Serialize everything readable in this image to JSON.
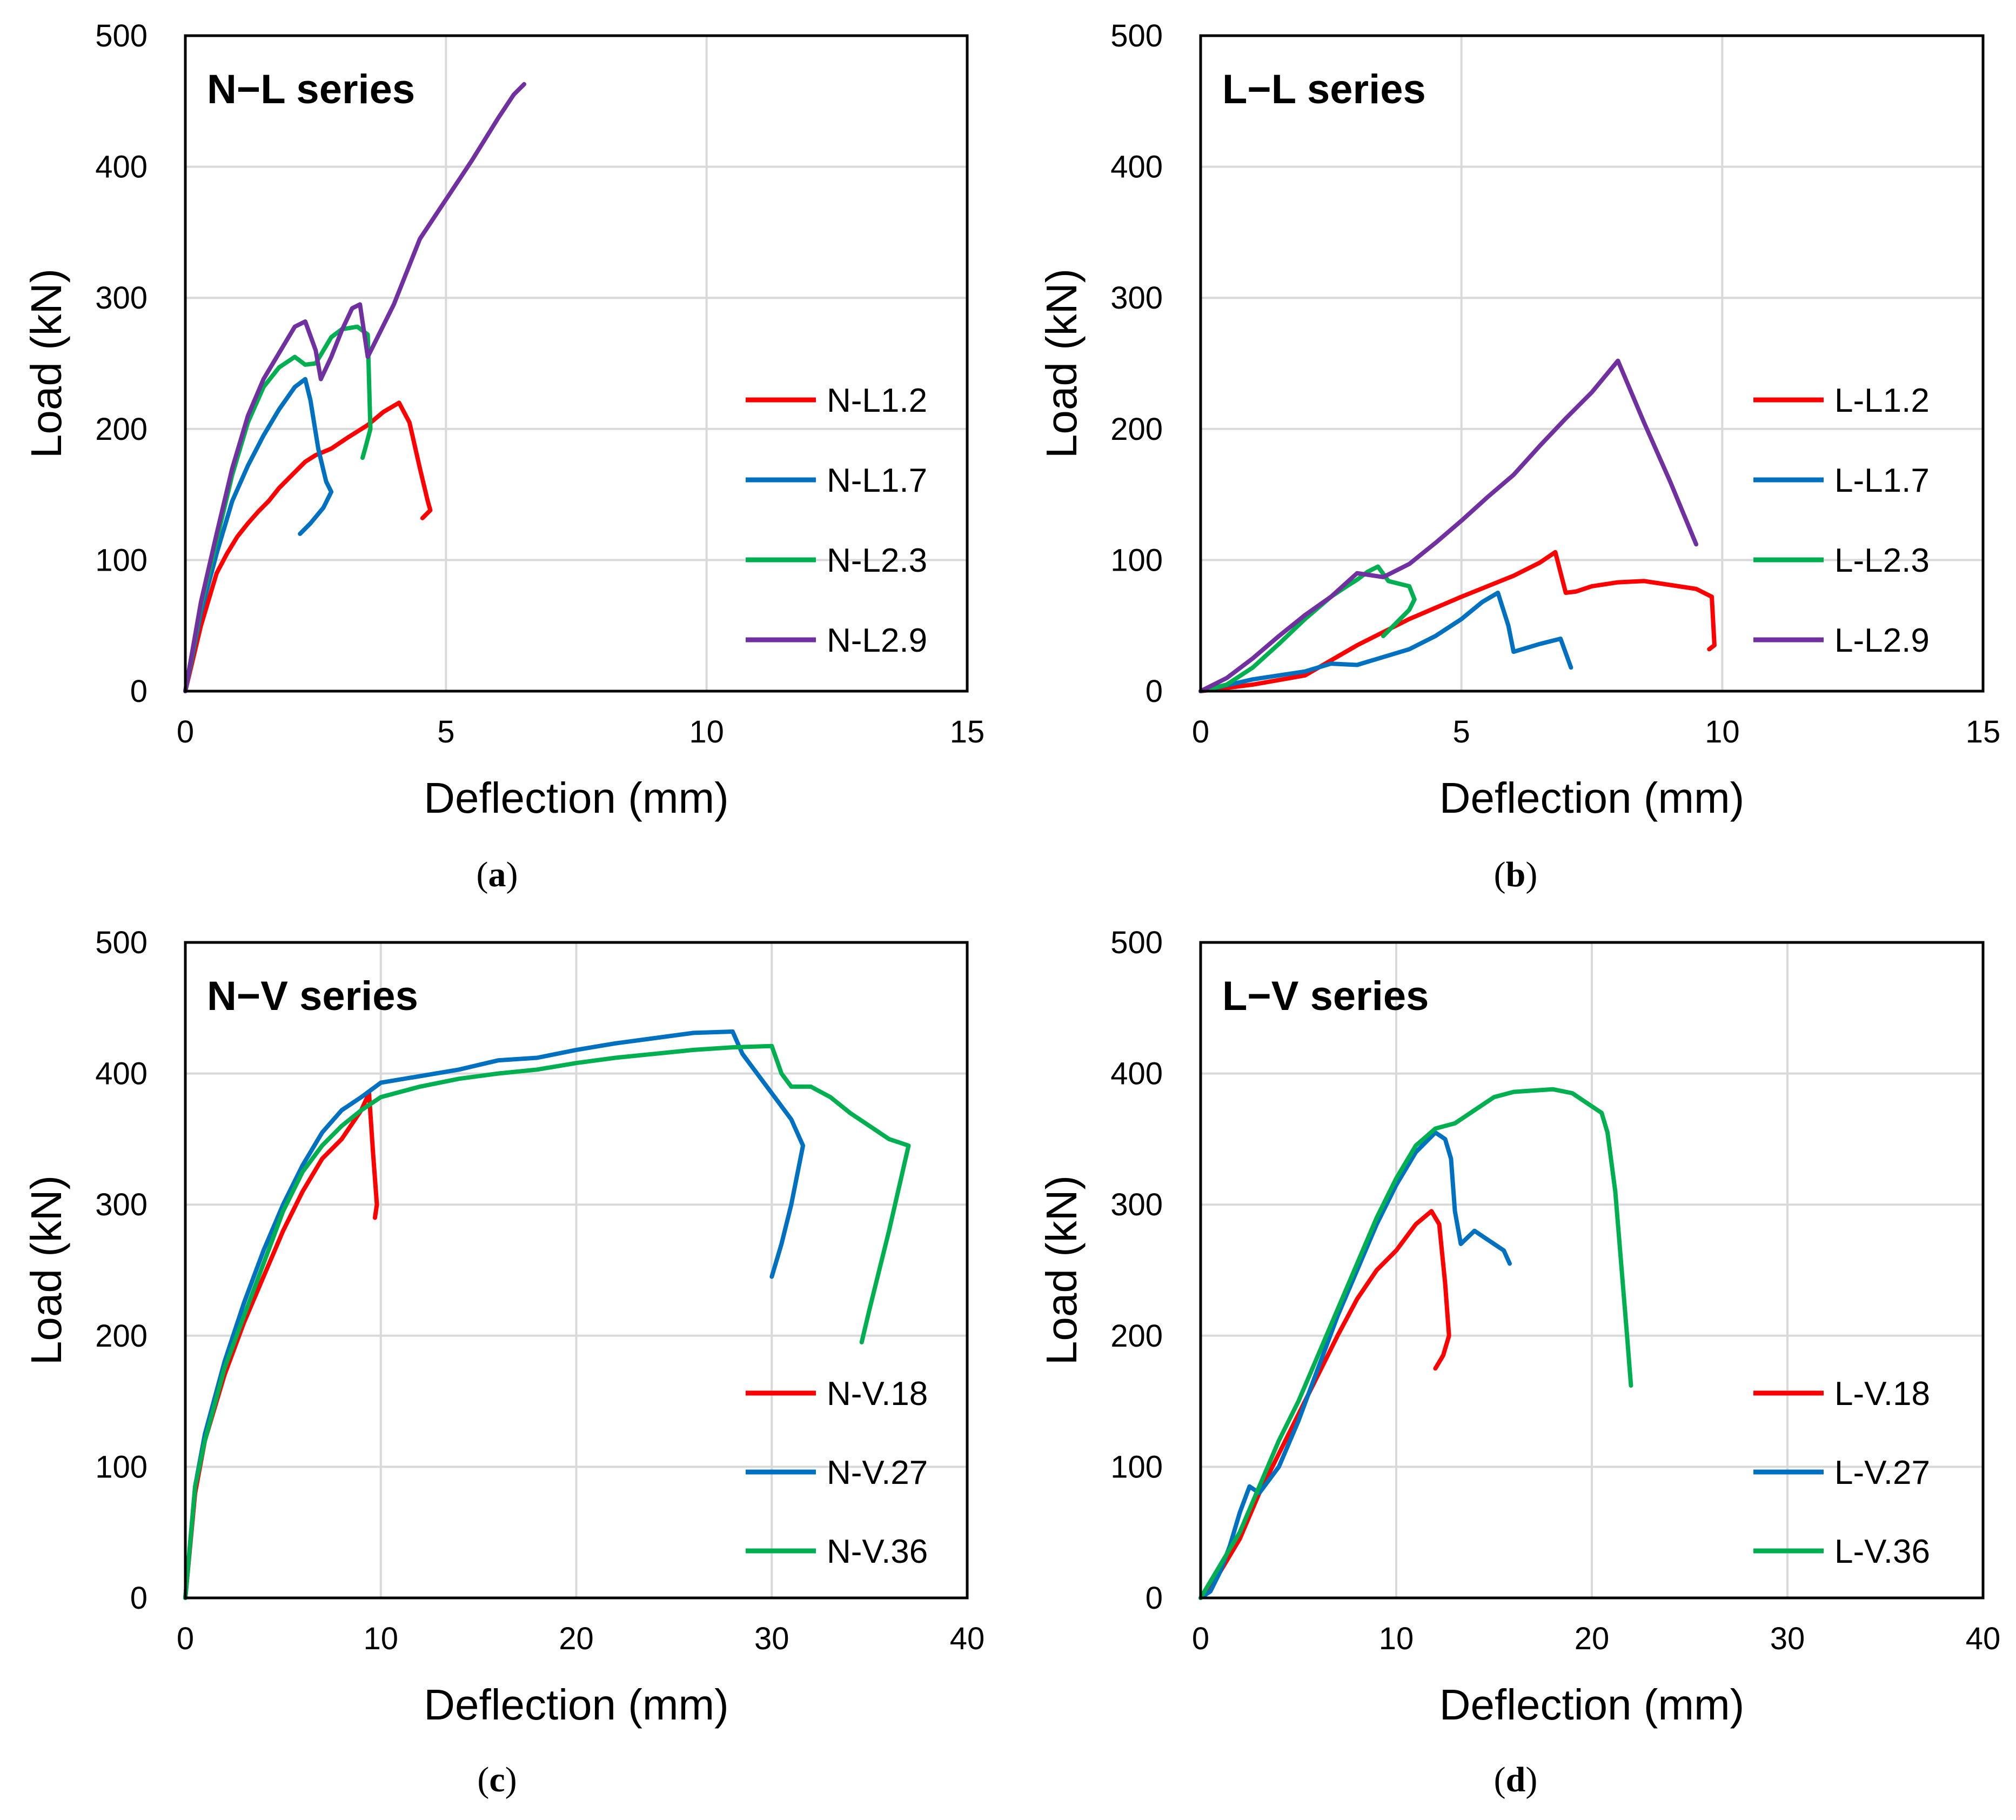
{
  "chart_data": [
    {
      "id": "a",
      "type": "line",
      "title": "N−L series",
      "caption": "a",
      "xlabel": "Deflection  (mm)",
      "ylabel": "Load (kN)",
      "xlim": [
        0,
        15
      ],
      "ylim": [
        0,
        500
      ],
      "xticks": [
        0,
        5,
        10,
        15
      ],
      "yticks": [
        0,
        100,
        200,
        300,
        400,
        500
      ],
      "grid": true,
      "legend_position": "right",
      "series": [
        {
          "name": "N-L1.2",
          "color": "#ff0000",
          "x": [
            0,
            0.3,
            0.6,
            0.8,
            1.0,
            1.2,
            1.4,
            1.6,
            1.8,
            2.0,
            2.3,
            2.5,
            2.8,
            3.1,
            3.5,
            3.8,
            4.1,
            4.3,
            4.5,
            4.65,
            4.7,
            4.55
          ],
          "y": [
            0,
            50,
            90,
            105,
            118,
            128,
            137,
            145,
            155,
            163,
            175,
            180,
            185,
            193,
            203,
            213,
            220,
            205,
            170,
            145,
            138,
            132
          ]
        },
        {
          "name": "N-L1.7",
          "color": "#0070c0",
          "x": [
            0,
            0.3,
            0.6,
            0.9,
            1.2,
            1.5,
            1.8,
            2.1,
            2.3,
            2.4,
            2.55,
            2.7,
            2.8,
            2.65,
            2.4,
            2.2
          ],
          "y": [
            0,
            60,
            105,
            145,
            172,
            195,
            215,
            232,
            238,
            222,
            185,
            160,
            152,
            140,
            128,
            120
          ]
        },
        {
          "name": "N-L2.3",
          "color": "#00b050",
          "x": [
            0,
            0.3,
            0.6,
            0.9,
            1.2,
            1.5,
            1.8,
            2.1,
            2.3,
            2.5,
            2.8,
            3.0,
            3.3,
            3.5,
            3.55,
            3.45,
            3.4
          ],
          "y": [
            0,
            65,
            115,
            165,
            205,
            232,
            247,
            255,
            249,
            250,
            270,
            276,
            278,
            272,
            200,
            185,
            178
          ]
        },
        {
          "name": "N-L2.9",
          "color": "#7030a0",
          "x": [
            0,
            0.3,
            0.6,
            0.9,
            1.2,
            1.5,
            1.8,
            2.1,
            2.3,
            2.5,
            2.6,
            2.8,
            3.0,
            3.2,
            3.35,
            3.5,
            4.0,
            4.5,
            5.0,
            5.5,
            6.0,
            6.3,
            6.5
          ],
          "y": [
            0,
            68,
            120,
            170,
            210,
            238,
            258,
            278,
            282,
            260,
            238,
            255,
            275,
            292,
            295,
            255,
            295,
            345,
            375,
            405,
            437,
            455,
            463
          ]
        }
      ]
    },
    {
      "id": "b",
      "type": "line",
      "title": "L−L series",
      "caption": "b",
      "xlabel": "Deflection  (mm)",
      "ylabel": "Load (kN)",
      "xlim": [
        0,
        15
      ],
      "ylim": [
        0,
        500
      ],
      "xticks": [
        0,
        5,
        10,
        15
      ],
      "yticks": [
        0,
        100,
        200,
        300,
        400,
        500
      ],
      "grid": true,
      "legend_position": "right",
      "series": [
        {
          "name": "L-L1.2",
          "color": "#ff0000",
          "x": [
            0,
            1.0,
            2.0,
            3.0,
            4.0,
            5.0,
            5.5,
            6.0,
            6.5,
            6.8,
            7.0,
            7.2,
            7.5,
            8.0,
            8.5,
            9.0,
            9.5,
            9.8,
            9.85,
            9.75
          ],
          "y": [
            0,
            5,
            12,
            35,
            55,
            72,
            80,
            88,
            98,
            106,
            75,
            76,
            80,
            83,
            84,
            81,
            78,
            72,
            35,
            32
          ]
        },
        {
          "name": "L-L1.7",
          "color": "#0070c0",
          "x": [
            0,
            1.0,
            2.0,
            2.5,
            3.0,
            3.5,
            4.0,
            4.5,
            5.0,
            5.4,
            5.7,
            5.9,
            6.0,
            6.5,
            6.9,
            7.1
          ],
          "y": [
            0,
            9,
            15,
            21,
            20,
            26,
            32,
            42,
            55,
            68,
            75,
            50,
            30,
            36,
            40,
            18
          ]
        },
        {
          "name": "L-L2.3",
          "color": "#00b050",
          "x": [
            0,
            0.5,
            1.0,
            1.5,
            2.0,
            2.5,
            2.8,
            3.0,
            3.2,
            3.4,
            3.6,
            3.8,
            4.0,
            4.1,
            4.0,
            3.5
          ],
          "y": [
            0,
            5,
            18,
            36,
            55,
            72,
            80,
            85,
            91,
            95,
            84,
            82,
            80,
            70,
            62,
            42
          ]
        },
        {
          "name": "L-L2.9",
          "color": "#7030a0",
          "x": [
            0,
            0.5,
            1.0,
            1.5,
            2.0,
            2.5,
            3.0,
            3.5,
            4.0,
            4.5,
            5.0,
            5.5,
            6.0,
            6.5,
            7.0,
            7.5,
            8.0,
            8.5,
            9.0,
            9.5
          ],
          "y": [
            0,
            10,
            25,
            42,
            58,
            72,
            90,
            87,
            97,
            113,
            130,
            148,
            165,
            187,
            208,
            228,
            252,
            205,
            160,
            112
          ]
        }
      ]
    },
    {
      "id": "c",
      "type": "line",
      "title": "N−V series",
      "caption": "c",
      "xlabel": "Deflection  (mm)",
      "ylabel": "Load (kN)",
      "xlim": [
        0,
        40
      ],
      "ylim": [
        0,
        500
      ],
      "xticks": [
        0,
        10,
        20,
        30,
        40
      ],
      "yticks": [
        0,
        100,
        200,
        300,
        400,
        500
      ],
      "grid": true,
      "legend_position": "bottom-right",
      "series": [
        {
          "name": "N-V.18",
          "color": "#ff0000",
          "x": [
            0,
            0.5,
            1.0,
            2.0,
            3.0,
            4.0,
            5.0,
            6.0,
            7.0,
            8.0,
            9.0,
            9.4,
            9.6,
            9.8,
            9.7
          ],
          "y": [
            0,
            80,
            120,
            170,
            210,
            245,
            280,
            310,
            335,
            350,
            372,
            385,
            340,
            300,
            290
          ]
        },
        {
          "name": "N-V.27",
          "color": "#0070c0",
          "x": [
            0,
            0.5,
            1.0,
            2.0,
            3.0,
            4.0,
            5.0,
            6.0,
            7.0,
            8.0,
            9.0,
            10.0,
            12.0,
            14.0,
            16.0,
            18.0,
            20.0,
            22.0,
            24.0,
            26.0,
            28.0,
            28.5,
            29.0,
            30.0,
            31.0,
            31.6,
            31.0,
            30.5,
            30.0
          ],
          "y": [
            0,
            85,
            125,
            180,
            225,
            265,
            300,
            330,
            355,
            372,
            382,
            393,
            398,
            403,
            410,
            412,
            418,
            423,
            427,
            431,
            432,
            415,
            405,
            385,
            365,
            345,
            300,
            270,
            245
          ]
        },
        {
          "name": "N-V.36",
          "color": "#00b050",
          "x": [
            0,
            0.5,
            1.0,
            2.0,
            3.0,
            4.0,
            5.0,
            6.0,
            7.0,
            8.0,
            9.0,
            10.0,
            12.0,
            14.0,
            16.0,
            18.0,
            20.0,
            22.0,
            24.0,
            26.0,
            28.0,
            30.0,
            30.5,
            31.0,
            32.0,
            33.0,
            34.0,
            35.0,
            36.0,
            37.0,
            36.0,
            35.0,
            34.6
          ],
          "y": [
            0,
            85,
            120,
            175,
            215,
            255,
            295,
            325,
            345,
            360,
            372,
            382,
            390,
            396,
            400,
            403,
            408,
            412,
            415,
            418,
            420,
            421,
            400,
            390,
            390,
            382,
            370,
            360,
            350,
            345,
            280,
            220,
            195
          ]
        }
      ]
    },
    {
      "id": "d",
      "type": "line",
      "title": "L−V series",
      "caption": "d",
      "xlabel": "Deflection  (mm)",
      "ylabel": "Load (kN)",
      "xlim": [
        0,
        40
      ],
      "ylim": [
        0,
        500
      ],
      "xticks": [
        0,
        10,
        20,
        30,
        40
      ],
      "yticks": [
        0,
        100,
        200,
        300,
        400,
        500
      ],
      "grid": true,
      "legend_position": "bottom-right",
      "series": [
        {
          "name": "L-V.18",
          "color": "#ff0000",
          "x": [
            0,
            1.0,
            2.0,
            3.0,
            4.0,
            5.0,
            6.0,
            7.0,
            8.0,
            9.0,
            10.0,
            11.0,
            11.8,
            12.2,
            12.5,
            12.7,
            12.4,
            12.0
          ],
          "y": [
            0,
            20,
            45,
            80,
            110,
            140,
            170,
            200,
            228,
            250,
            265,
            285,
            295,
            285,
            240,
            200,
            185,
            175
          ]
        },
        {
          "name": "L-V.27",
          "color": "#0070c0",
          "x": [
            0,
            0.5,
            1.0,
            1.5,
            2.0,
            2.5,
            3.0,
            4.0,
            5.0,
            6.0,
            7.0,
            8.0,
            9.0,
            10.0,
            11.0,
            12.0,
            12.5,
            12.8,
            13.0,
            13.3,
            14.0,
            15.0,
            15.5,
            15.8
          ],
          "y": [
            0,
            5,
            20,
            40,
            65,
            85,
            80,
            100,
            135,
            175,
            215,
            250,
            285,
            315,
            340,
            355,
            350,
            335,
            295,
            270,
            280,
            270,
            265,
            255
          ]
        },
        {
          "name": "L-V.36",
          "color": "#00b050",
          "x": [
            0,
            1.0,
            2.0,
            3.0,
            4.0,
            5.0,
            6.0,
            7.0,
            8.0,
            9.0,
            10.0,
            11.0,
            12.0,
            13.0,
            14.0,
            15.0,
            16.0,
            17.0,
            18.0,
            19.0,
            20.0,
            20.5,
            20.8,
            21.2,
            21.5,
            21.8,
            22.0
          ],
          "y": [
            0,
            25,
            50,
            85,
            120,
            150,
            185,
            220,
            255,
            290,
            320,
            345,
            358,
            362,
            372,
            382,
            386,
            387,
            388,
            385,
            375,
            370,
            355,
            310,
            255,
            200,
            162
          ]
        }
      ]
    }
  ]
}
